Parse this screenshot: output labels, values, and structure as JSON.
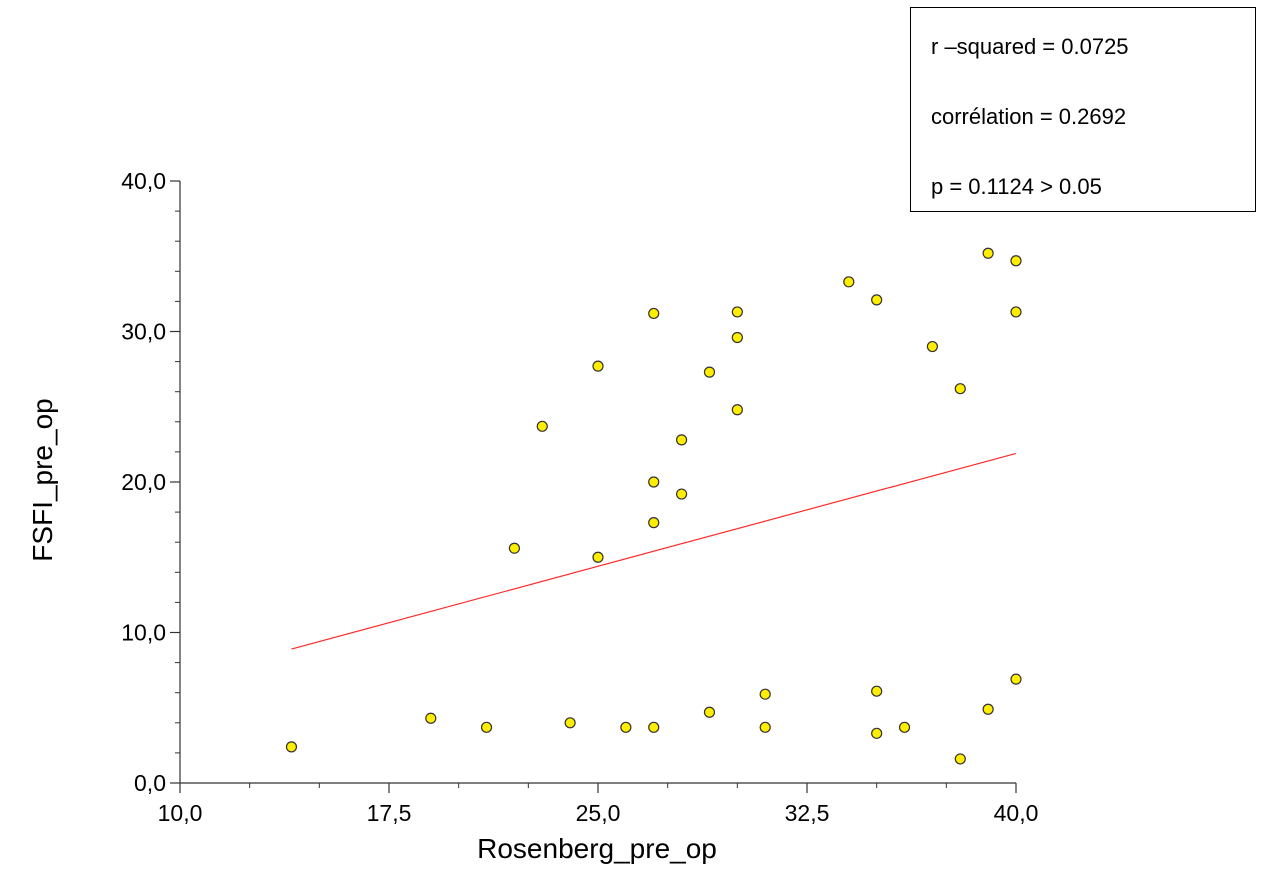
{
  "chart_data": {
    "type": "scatter",
    "xlabel": "Rosenberg_pre_op",
    "ylabel": "FSFI_pre_op",
    "xlim": [
      10,
      40
    ],
    "ylim": [
      0,
      40
    ],
    "x_tick_labels": [
      "10,0",
      "17,5",
      "25,0",
      "32,5",
      "40,0"
    ],
    "y_tick_labels": [
      "0,0",
      "10,0",
      "20,0",
      "30,0",
      "40,0"
    ],
    "x_tick_values": [
      10,
      17.5,
      25,
      32.5,
      40
    ],
    "y_tick_values": [
      0,
      10,
      20,
      30,
      40
    ],
    "grid": false,
    "point_color": "#ffee00",
    "point_edge_color": "#333333",
    "regression_color": "#ff2a2a",
    "regression_line": {
      "x": [
        14,
        40
      ],
      "y": [
        8.9,
        21.9
      ]
    },
    "points": [
      {
        "x": 14,
        "y": 2.4
      },
      {
        "x": 19,
        "y": 4.3
      },
      {
        "x": 21,
        "y": 3.7
      },
      {
        "x": 22,
        "y": 15.6
      },
      {
        "x": 23,
        "y": 23.7
      },
      {
        "x": 24,
        "y": 4.0
      },
      {
        "x": 25,
        "y": 27.7
      },
      {
        "x": 25,
        "y": 15.0
      },
      {
        "x": 26,
        "y": 3.7
      },
      {
        "x": 27,
        "y": 31.2
      },
      {
        "x": 27,
        "y": 20.0
      },
      {
        "x": 27,
        "y": 17.3
      },
      {
        "x": 27,
        "y": 3.7
      },
      {
        "x": 28,
        "y": 22.8
      },
      {
        "x": 28,
        "y": 19.2
      },
      {
        "x": 29,
        "y": 27.3
      },
      {
        "x": 29,
        "y": 4.7
      },
      {
        "x": 30,
        "y": 31.3
      },
      {
        "x": 30,
        "y": 29.6
      },
      {
        "x": 30,
        "y": 24.8
      },
      {
        "x": 31,
        "y": 5.9
      },
      {
        "x": 31,
        "y": 3.7
      },
      {
        "x": 34,
        "y": 33.3
      },
      {
        "x": 35,
        "y": 32.1
      },
      {
        "x": 35,
        "y": 6.1
      },
      {
        "x": 35,
        "y": 3.3
      },
      {
        "x": 36,
        "y": 3.7
      },
      {
        "x": 37,
        "y": 29.0
      },
      {
        "x": 38,
        "y": 26.2
      },
      {
        "x": 38,
        "y": 1.6
      },
      {
        "x": 39,
        "y": 35.2
      },
      {
        "x": 39,
        "y": 4.9
      },
      {
        "x": 40,
        "y": 34.7
      },
      {
        "x": 40,
        "y": 31.3
      },
      {
        "x": 40,
        "y": 6.9
      }
    ],
    "annotations": [
      "r –squared = 0.0725",
      "corrélation = 0.2692",
      "p = 0.1124 > 0.05"
    ]
  }
}
